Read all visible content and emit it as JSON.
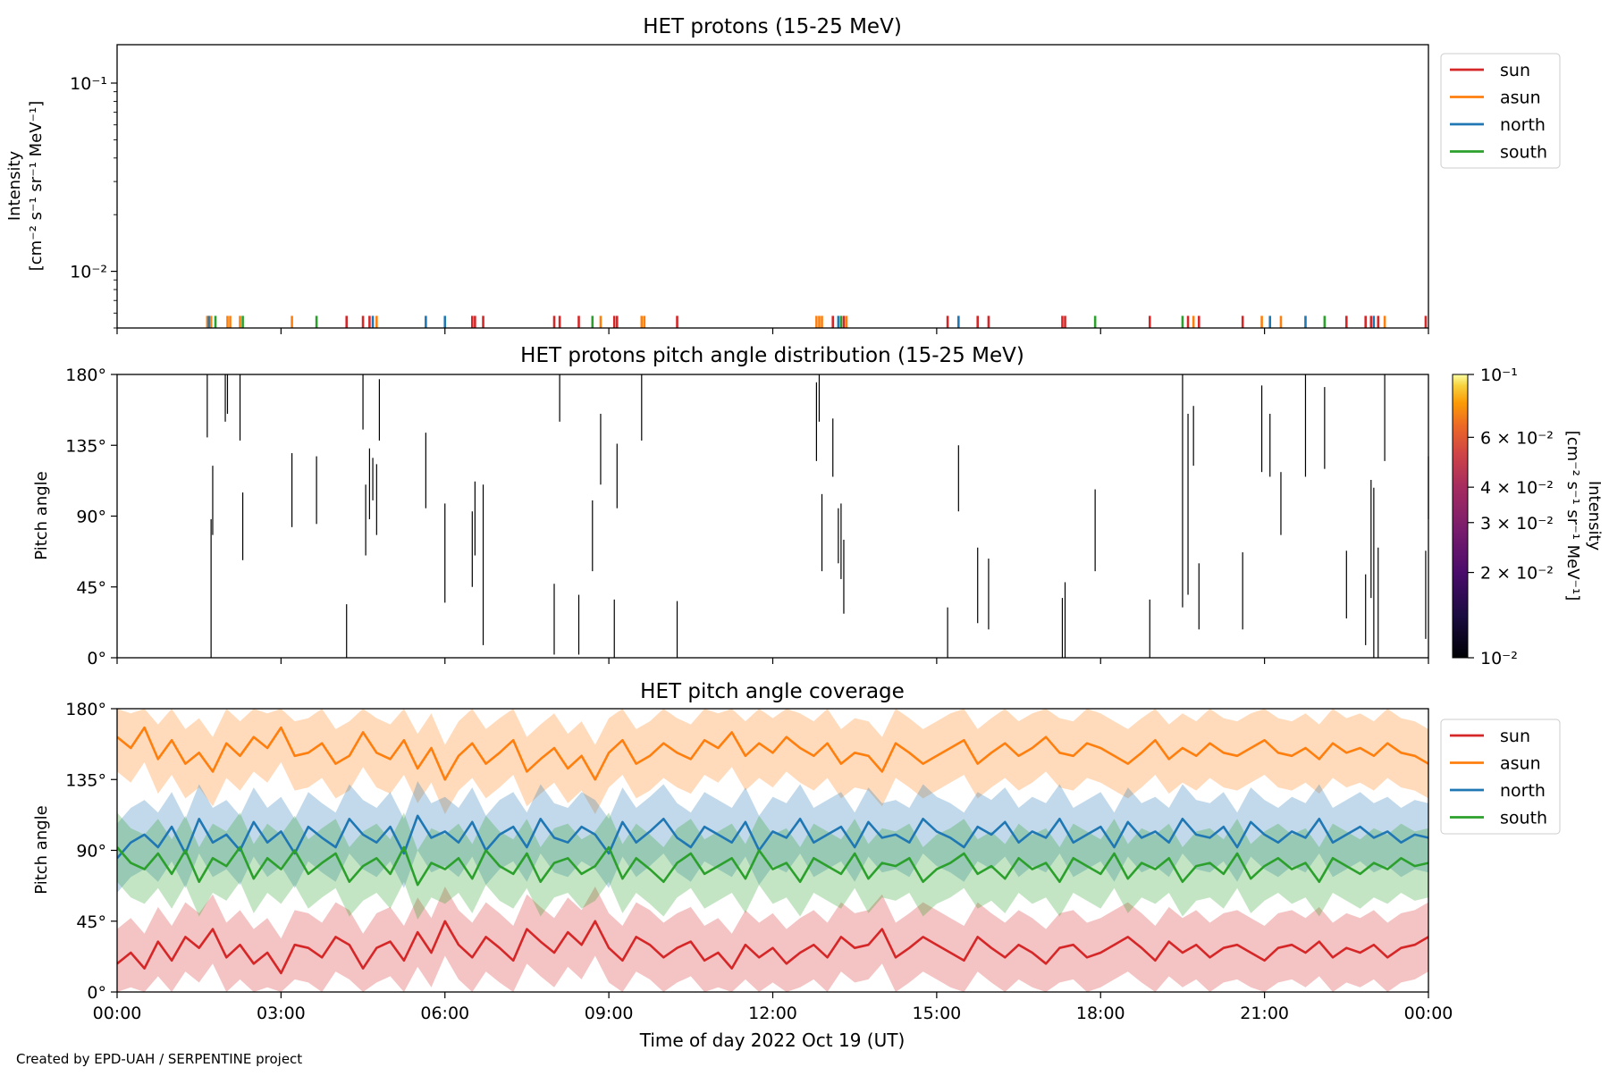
{
  "figure": {
    "credit": "Created by EPD-UAH / SERPENTINE project",
    "xlabel": "Time of day 2022 Oct 19 (UT)",
    "x_ticks": [
      "00:00",
      "03:00",
      "06:00",
      "09:00",
      "12:00",
      "15:00",
      "18:00",
      "21:00",
      "00:00"
    ],
    "x_range_hours": [
      0,
      24
    ]
  },
  "colors": {
    "sun": "#d62728",
    "asun": "#ff7f0e",
    "north": "#1f77b4",
    "south": "#2ca02c"
  },
  "legend": [
    {
      "key": "sun",
      "label": "sun"
    },
    {
      "key": "asun",
      "label": "asun"
    },
    {
      "key": "north",
      "label": "north"
    },
    {
      "key": "south",
      "label": "south"
    }
  ],
  "chart_data": [
    {
      "type": "line",
      "title": "HET protons (15-25 MeV)",
      "ylabel_line1": "Intensity",
      "ylabel_line2": "[cm⁻² s⁻¹ sr⁻¹ MeV⁻¹]",
      "yscale": "log",
      "ylim": [
        0.005,
        0.16
      ],
      "y_ticks": [
        {
          "value": 0.1,
          "label": "10⁻¹"
        },
        {
          "value": 0.01,
          "label": "10⁻²"
        }
      ],
      "legend_position": "upper-right-outside",
      "events": [
        {
          "t": 1.65,
          "s": "asun"
        },
        {
          "t": 1.68,
          "s": "north"
        },
        {
          "t": 1.72,
          "s": "asun"
        },
        {
          "t": 1.8,
          "s": "south"
        },
        {
          "t": 2.02,
          "s": "asun"
        },
        {
          "t": 2.07,
          "s": "asun"
        },
        {
          "t": 2.25,
          "s": "asun"
        },
        {
          "t": 2.3,
          "s": "south"
        },
        {
          "t": 3.2,
          "s": "asun"
        },
        {
          "t": 3.65,
          "s": "south"
        },
        {
          "t": 4.2,
          "s": "sun"
        },
        {
          "t": 4.5,
          "s": "sun"
        },
        {
          "t": 4.62,
          "s": "sun"
        },
        {
          "t": 4.68,
          "s": "north"
        },
        {
          "t": 4.75,
          "s": "asun"
        },
        {
          "t": 5.65,
          "s": "north"
        },
        {
          "t": 6.0,
          "s": "north"
        },
        {
          "t": 6.5,
          "s": "sun"
        },
        {
          "t": 6.55,
          "s": "sun"
        },
        {
          "t": 6.7,
          "s": "sun"
        },
        {
          "t": 8.0,
          "s": "sun"
        },
        {
          "t": 8.1,
          "s": "sun"
        },
        {
          "t": 8.45,
          "s": "sun"
        },
        {
          "t": 8.7,
          "s": "south"
        },
        {
          "t": 8.85,
          "s": "asun"
        },
        {
          "t": 9.1,
          "s": "sun"
        },
        {
          "t": 9.15,
          "s": "sun"
        },
        {
          "t": 9.6,
          "s": "asun"
        },
        {
          "t": 9.65,
          "s": "asun"
        },
        {
          "t": 10.25,
          "s": "sun"
        },
        {
          "t": 12.8,
          "s": "asun"
        },
        {
          "t": 12.85,
          "s": "asun"
        },
        {
          "t": 12.9,
          "s": "asun"
        },
        {
          "t": 13.1,
          "s": "sun"
        },
        {
          "t": 13.2,
          "s": "north"
        },
        {
          "t": 13.25,
          "s": "south"
        },
        {
          "t": 13.3,
          "s": "sun"
        },
        {
          "t": 13.35,
          "s": "asun"
        },
        {
          "t": 15.2,
          "s": "sun"
        },
        {
          "t": 15.4,
          "s": "north"
        },
        {
          "t": 15.75,
          "s": "sun"
        },
        {
          "t": 15.95,
          "s": "sun"
        },
        {
          "t": 17.3,
          "s": "sun"
        },
        {
          "t": 17.35,
          "s": "sun"
        },
        {
          "t": 17.9,
          "s": "south"
        },
        {
          "t": 18.9,
          "s": "sun"
        },
        {
          "t": 19.5,
          "s": "south"
        },
        {
          "t": 19.6,
          "s": "sun"
        },
        {
          "t": 19.7,
          "s": "asun"
        },
        {
          "t": 19.8,
          "s": "sun"
        },
        {
          "t": 20.6,
          "s": "sun"
        },
        {
          "t": 20.95,
          "s": "asun"
        },
        {
          "t": 21.1,
          "s": "north"
        },
        {
          "t": 21.3,
          "s": "asun"
        },
        {
          "t": 21.75,
          "s": "north"
        },
        {
          "t": 22.1,
          "s": "south"
        },
        {
          "t": 22.5,
          "s": "sun"
        },
        {
          "t": 22.85,
          "s": "sun"
        },
        {
          "t": 22.95,
          "s": "sun"
        },
        {
          "t": 23.0,
          "s": "north"
        },
        {
          "t": 23.08,
          "s": "sun"
        },
        {
          "t": 23.2,
          "s": "asun"
        },
        {
          "t": 23.95,
          "s": "sun"
        }
      ]
    },
    {
      "type": "heatmap",
      "title": "HET protons pitch angle distribution (15-25 MeV)",
      "ylabel": "Pitch angle",
      "ylim": [
        0,
        180
      ],
      "y_ticks": [
        "0°",
        "45°",
        "90°",
        "135°",
        "180°"
      ],
      "colorbar": {
        "label_line1": "Intensity",
        "label_line2": "[cm⁻² s⁻¹ sr⁻¹ MeV⁻¹]",
        "scale": "log",
        "range": [
          0.01,
          0.1
        ],
        "ticks": [
          {
            "value": 0.1,
            "label": "10⁻¹"
          },
          {
            "value": 0.06,
            "label": "6 × 10⁻²"
          },
          {
            "value": 0.04,
            "label": "4 × 10⁻²"
          },
          {
            "value": 0.03,
            "label": "3 × 10⁻²"
          },
          {
            "value": 0.02,
            "label": "2 × 10⁻²"
          },
          {
            "value": 0.01,
            "label": "10⁻²"
          }
        ]
      },
      "segments": [
        [
          1.65,
          140,
          180
        ],
        [
          1.72,
          0,
          88
        ],
        [
          1.75,
          78,
          122
        ],
        [
          1.98,
          150,
          180
        ],
        [
          2.02,
          155,
          180
        ],
        [
          2.25,
          138,
          180
        ],
        [
          2.3,
          62,
          105
        ],
        [
          3.2,
          83,
          130
        ],
        [
          3.65,
          85,
          128
        ],
        [
          4.2,
          0,
          34
        ],
        [
          4.5,
          145,
          180
        ],
        [
          4.55,
          65,
          110
        ],
        [
          4.62,
          88,
          133
        ],
        [
          4.68,
          100,
          127
        ],
        [
          4.75,
          78,
          123
        ],
        [
          4.8,
          138,
          177
        ],
        [
          5.65,
          95,
          143
        ],
        [
          6.0,
          35,
          98
        ],
        [
          6.5,
          45,
          93
        ],
        [
          6.55,
          65,
          112
        ],
        [
          6.7,
          8,
          110
        ],
        [
          8.0,
          2,
          47
        ],
        [
          8.1,
          150,
          180
        ],
        [
          8.45,
          2,
          40
        ],
        [
          8.7,
          55,
          100
        ],
        [
          8.85,
          110,
          155
        ],
        [
          9.1,
          0,
          37
        ],
        [
          9.15,
          95,
          136
        ],
        [
          9.6,
          138,
          180
        ],
        [
          10.25,
          0,
          36
        ],
        [
          12.8,
          125,
          175
        ],
        [
          12.85,
          150,
          180
        ],
        [
          12.9,
          55,
          104
        ],
        [
          13.1,
          115,
          152
        ],
        [
          13.2,
          60,
          95
        ],
        [
          13.25,
          50,
          98
        ],
        [
          13.3,
          28,
          75
        ],
        [
          15.2,
          0,
          32
        ],
        [
          15.4,
          93,
          135
        ],
        [
          15.75,
          22,
          70
        ],
        [
          15.95,
          18,
          63
        ],
        [
          17.3,
          0,
          38
        ],
        [
          17.35,
          0,
          48
        ],
        [
          17.9,
          55,
          107
        ],
        [
          18.9,
          0,
          37
        ],
        [
          19.5,
          32,
          180
        ],
        [
          19.6,
          40,
          155
        ],
        [
          19.7,
          122,
          160
        ],
        [
          19.8,
          18,
          60
        ],
        [
          20.6,
          18,
          67
        ],
        [
          20.95,
          118,
          173
        ],
        [
          21.1,
          115,
          155
        ],
        [
          21.3,
          78,
          118
        ],
        [
          21.75,
          115,
          180
        ],
        [
          22.1,
          120,
          172
        ],
        [
          22.5,
          25,
          68
        ],
        [
          22.85,
          8,
          53
        ],
        [
          22.95,
          38,
          113
        ],
        [
          23.0,
          0,
          108
        ],
        [
          23.08,
          0,
          70
        ],
        [
          23.2,
          125,
          180
        ],
        [
          23.95,
          12,
          68
        ],
        [
          24.0,
          88,
          128
        ]
      ]
    },
    {
      "type": "line",
      "title": "HET pitch angle coverage",
      "ylabel": "Pitch angle",
      "ylim": [
        0,
        180
      ],
      "y_ticks": [
        "0°",
        "45°",
        "90°",
        "135°",
        "180°"
      ],
      "legend_position": "upper-right-outside",
      "band_halfwidth_deg": 22,
      "sample_step_hours": 0.25,
      "series": [
        {
          "key": "sun",
          "name": "sun",
          "values": [
            18,
            25,
            15,
            32,
            20,
            35,
            28,
            40,
            22,
            30,
            18,
            25,
            12,
            30,
            28,
            22,
            35,
            30,
            15,
            28,
            32,
            20,
            38,
            25,
            45,
            30,
            22,
            35,
            28,
            20,
            40,
            32,
            25,
            38,
            30,
            45,
            28,
            20,
            35,
            30,
            22,
            28,
            32,
            20,
            25,
            15,
            30,
            22,
            28,
            18,
            25,
            30,
            22,
            35,
            28,
            30,
            40,
            22,
            28,
            35,
            30,
            25,
            20,
            35,
            28,
            22,
            30,
            25,
            18,
            28,
            30,
            22,
            25,
            30,
            35,
            28,
            20,
            32,
            25,
            30,
            22,
            28,
            30,
            25,
            20,
            28,
            30,
            25,
            32,
            22,
            28,
            25,
            30,
            22,
            28,
            30,
            35
          ]
        },
        {
          "key": "asun",
          "name": "asun",
          "values": [
            162,
            155,
            168,
            148,
            160,
            145,
            152,
            140,
            158,
            150,
            162,
            155,
            168,
            150,
            152,
            158,
            145,
            150,
            165,
            152,
            148,
            160,
            142,
            155,
            135,
            150,
            158,
            145,
            152,
            160,
            140,
            148,
            155,
            142,
            150,
            135,
            152,
            160,
            145,
            150,
            158,
            152,
            148,
            160,
            155,
            165,
            150,
            158,
            152,
            162,
            155,
            150,
            158,
            145,
            152,
            150,
            140,
            158,
            152,
            145,
            150,
            155,
            160,
            145,
            152,
            158,
            150,
            155,
            162,
            152,
            150,
            158,
            155,
            150,
            145,
            152,
            160,
            148,
            155,
            150,
            158,
            152,
            150,
            155,
            160,
            152,
            150,
            155,
            148,
            158,
            152,
            155,
            150,
            158,
            152,
            150,
            145
          ]
        },
        {
          "key": "north",
          "name": "north",
          "values": [
            85,
            95,
            100,
            92,
            105,
            88,
            110,
            95,
            100,
            90,
            108,
            95,
            102,
            88,
            105,
            98,
            92,
            110,
            100,
            95,
            105,
            88,
            112,
            98,
            102,
            95,
            108,
            90,
            100,
            105,
            92,
            110,
            98,
            95,
            105,
            100,
            88,
            108,
            95,
            102,
            110,
            98,
            92,
            105,
            100,
            95,
            108,
            90,
            102,
            98,
            110,
            95,
            100,
            105,
            92,
            108,
            98,
            100,
            95,
            110,
            102,
            98,
            92,
            105,
            100,
            108,
            95,
            102,
            98,
            110,
            95,
            100,
            105,
            92,
            108,
            98,
            102,
            95,
            110,
            100,
            98,
            105,
            92,
            108,
            100,
            95,
            102,
            98,
            110,
            95,
            100,
            105,
            98,
            102,
            95,
            100,
            98
          ]
        },
        {
          "key": "south",
          "name": "south",
          "values": [
            92,
            82,
            78,
            88,
            75,
            90,
            70,
            85,
            80,
            92,
            72,
            85,
            78,
            90,
            75,
            82,
            88,
            70,
            80,
            85,
            75,
            92,
            68,
            82,
            78,
            85,
            72,
            90,
            80,
            75,
            88,
            70,
            82,
            85,
            75,
            80,
            92,
            72,
            85,
            78,
            70,
            82,
            88,
            75,
            80,
            85,
            72,
            90,
            78,
            82,
            70,
            85,
            80,
            75,
            88,
            72,
            82,
            80,
            85,
            70,
            78,
            82,
            88,
            75,
            80,
            72,
            85,
            78,
            82,
            70,
            85,
            80,
            75,
            88,
            72,
            82,
            78,
            85,
            70,
            80,
            82,
            75,
            88,
            72,
            80,
            85,
            78,
            82,
            70,
            85,
            80,
            75,
            82,
            78,
            85,
            80,
            82
          ]
        }
      ]
    }
  ]
}
